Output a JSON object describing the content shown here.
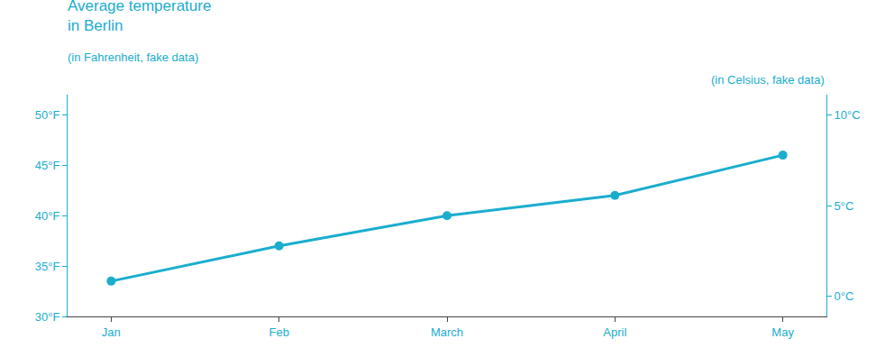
{
  "chart_data": {
    "type": "line",
    "title": "Average temperature\nin Berlin",
    "subtitle": "(in Fahrenheit, fake data)",
    "y2label": "(in Celsius, fake data)",
    "categories": [
      "Jan",
      "Feb",
      "March",
      "April",
      "May"
    ],
    "series": [
      {
        "values": [
          33.5,
          37.0,
          40.0,
          42.0,
          46.0
        ],
        "color": "#1AADCE",
        "marker": "circle"
      }
    ],
    "ylim": [
      30,
      52
    ],
    "yticks": [
      {
        "value": 30,
        "label": "30°F"
      },
      {
        "value": 35,
        "label": "35°F"
      },
      {
        "value": 40,
        "label": "40°F"
      },
      {
        "value": 45,
        "label": "45°F"
      },
      {
        "value": 50,
        "label": "50°F"
      }
    ],
    "y2lim": [
      -1.1111111111111112,
      11.11111111111111
    ],
    "y2ticks": [
      {
        "value": 0,
        "label": "0°C"
      },
      {
        "value": 5,
        "label": "5°C"
      },
      {
        "value": 10,
        "label": "10°C"
      }
    ],
    "grid": false
  }
}
